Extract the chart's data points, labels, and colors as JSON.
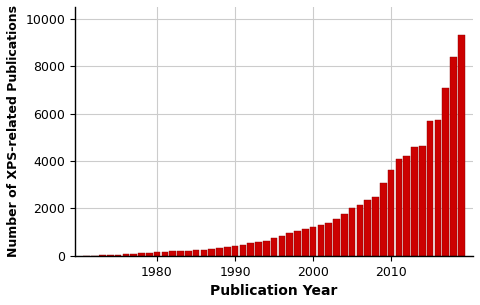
{
  "years": [
    1971,
    1972,
    1973,
    1974,
    1975,
    1976,
    1977,
    1978,
    1979,
    1980,
    1981,
    1982,
    1983,
    1984,
    1985,
    1986,
    1987,
    1988,
    1989,
    1990,
    1991,
    1992,
    1993,
    1994,
    1995,
    1996,
    1997,
    1998,
    1999,
    2000,
    2001,
    2002,
    2003,
    2004,
    2005,
    2006,
    2007,
    2008,
    2009,
    2010,
    2011,
    2012,
    2013,
    2014,
    2015,
    2016,
    2017,
    2018,
    2019
  ],
  "values": [
    5,
    10,
    20,
    30,
    50,
    65,
    80,
    100,
    120,
    150,
    170,
    185,
    200,
    215,
    240,
    260,
    290,
    320,
    360,
    420,
    470,
    520,
    570,
    630,
    750,
    850,
    950,
    1050,
    1150,
    1200,
    1300,
    1400,
    1550,
    1750,
    2000,
    2150,
    2350,
    2500,
    3050,
    3600,
    4100,
    4200,
    4600,
    4650,
    5700,
    5750,
    7100,
    8400,
    9300
  ],
  "bar_color": "#cc0000",
  "bar_edge_color": "#8b0000",
  "xlabel": "Publication Year",
  "ylabel": "Number of XPS-related Publications",
  "ylim": [
    0,
    10500
  ],
  "yticks": [
    0,
    2000,
    4000,
    6000,
    8000,
    10000
  ],
  "xticks": [
    1980,
    1990,
    2000,
    2010
  ],
  "background_color": "#ffffff",
  "grid_color": "#cccccc",
  "xlabel_fontsize": 10,
  "ylabel_fontsize": 9,
  "tick_fontsize": 9,
  "xlim": [
    1969.5,
    2020.5
  ]
}
